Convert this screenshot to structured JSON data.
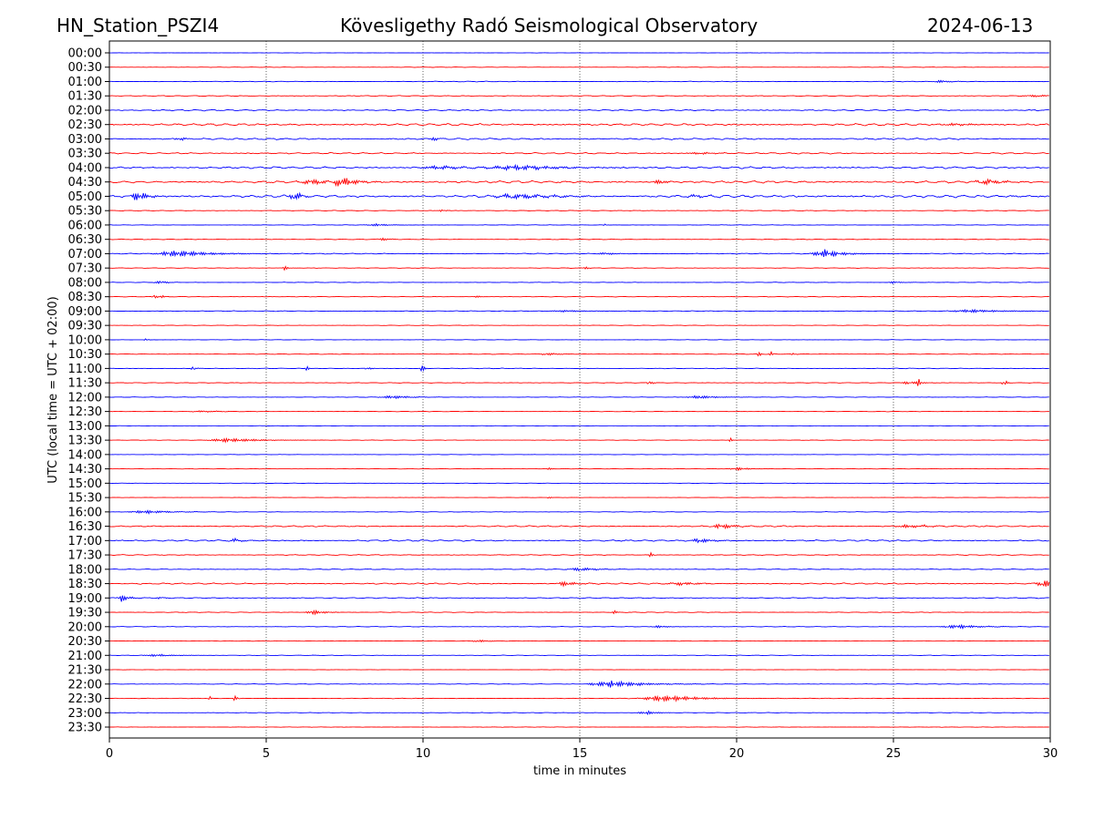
{
  "header": {
    "station": "HN_Station_PSZI4",
    "observatory": "Kövesligethy Radó Seismological Observatory",
    "date": "2024-06-13"
  },
  "chart_data": {
    "type": "line",
    "title": "Kövesligethy Radó Seismological Observatory",
    "xlabel": "time in minutes",
    "ylabel": "UTC (local time = UTC + 02:00)",
    "xlim": [
      0,
      30
    ],
    "xticks": [
      0,
      5,
      10,
      15,
      20,
      25,
      30
    ],
    "grid": "vertical dotted at 5-minute ticks",
    "colors": [
      "#0000ff",
      "#ff0000"
    ],
    "rows": [
      {
        "label": "00:00",
        "noise": 0.2,
        "events": []
      },
      {
        "label": "00:30",
        "noise": 0.25,
        "events": []
      },
      {
        "label": "01:00",
        "noise": 0.4,
        "events": [
          [
            26.5,
            1.5,
            0.3
          ]
        ]
      },
      {
        "label": "01:30",
        "noise": 0.5,
        "events": [
          [
            29.5,
            1.2,
            0.5
          ]
        ]
      },
      {
        "label": "02:00",
        "noise": 0.8,
        "events": []
      },
      {
        "label": "02:30",
        "noise": 1.2,
        "events": [
          [
            27,
            1.5,
            0.6
          ]
        ]
      },
      {
        "label": "03:00",
        "noise": 1.0,
        "events": [
          [
            2.2,
            3,
            0.15
          ],
          [
            10.3,
            3,
            0.15
          ]
        ]
      },
      {
        "label": "03:30",
        "noise": 0.8,
        "events": [
          [
            18.8,
            1.5,
            0.5
          ]
        ]
      },
      {
        "label": "04:00",
        "noise": 1.2,
        "events": [
          [
            13,
            3,
            1.2
          ],
          [
            10.5,
            2,
            0.8
          ]
        ]
      },
      {
        "label": "04:30",
        "noise": 1.3,
        "events": [
          [
            7.4,
            7,
            0.4
          ],
          [
            6.5,
            3,
            0.6
          ],
          [
            17.5,
            3,
            0.2
          ],
          [
            28,
            3,
            0.5
          ]
        ]
      },
      {
        "label": "05:00",
        "noise": 1.5,
        "events": [
          [
            0.9,
            6,
            0.3
          ],
          [
            5.9,
            6,
            0.2
          ],
          [
            13,
            3,
            1.0
          ],
          [
            18.7,
            2,
            0.3
          ]
        ]
      },
      {
        "label": "05:30",
        "noise": 0.4,
        "events": [
          [
            10.6,
            2,
            0.1
          ]
        ]
      },
      {
        "label": "06:00",
        "noise": 0.3,
        "events": [
          [
            8.5,
            1.5,
            0.4
          ],
          [
            15.8,
            2,
            0.05
          ]
        ]
      },
      {
        "label": "06:30",
        "noise": 0.4,
        "events": [
          [
            8.7,
            2,
            0.2
          ]
        ]
      },
      {
        "label": "07:00",
        "noise": 0.5,
        "events": [
          [
            2.2,
            4,
            0.9
          ],
          [
            22.8,
            5,
            0.5
          ],
          [
            15.8,
            1.5,
            0.3
          ]
        ]
      },
      {
        "label": "07:30",
        "noise": 0.3,
        "events": [
          [
            5.6,
            3,
            0.08
          ],
          [
            15.2,
            1.5,
            0.1
          ]
        ]
      },
      {
        "label": "08:00",
        "noise": 0.3,
        "events": [
          [
            1.6,
            2,
            0.2
          ],
          [
            25,
            1.2,
            0.3
          ]
        ]
      },
      {
        "label": "08:30",
        "noise": 0.3,
        "events": [
          [
            1.4,
            3,
            0.08
          ],
          [
            1.7,
            2,
            0.08
          ],
          [
            11.7,
            1.5,
            0.1
          ]
        ]
      },
      {
        "label": "09:00",
        "noise": 0.4,
        "events": [
          [
            14.5,
            1,
            0.8
          ],
          [
            27.5,
            2,
            0.8
          ]
        ]
      },
      {
        "label": "09:30",
        "noise": 0.25,
        "events": []
      },
      {
        "label": "10:00",
        "noise": 0.25,
        "events": [
          [
            1.15,
            5,
            0.04
          ]
        ]
      },
      {
        "label": "10:30",
        "noise": 0.35,
        "events": [
          [
            20.7,
            4,
            0.05
          ],
          [
            21.1,
            5,
            0.05
          ],
          [
            21.8,
            3,
            0.05
          ],
          [
            14,
            1.5,
            0.3
          ]
        ]
      },
      {
        "label": "11:00",
        "noise": 0.35,
        "events": [
          [
            9.95,
            10,
            0.05
          ],
          [
            2.65,
            5,
            0.06
          ],
          [
            6.3,
            3,
            0.06
          ],
          [
            8.2,
            2,
            0.1
          ]
        ]
      },
      {
        "label": "11:30",
        "noise": 0.35,
        "events": [
          [
            28.5,
            14,
            0.05
          ],
          [
            25.8,
            5,
            0.06
          ],
          [
            17.2,
            4,
            0.08
          ],
          [
            25.5,
            2,
            0.3
          ]
        ]
      },
      {
        "label": "12:00",
        "noise": 0.3,
        "events": [
          [
            9,
            2,
            0.5
          ],
          [
            18.8,
            2,
            0.5
          ]
        ]
      },
      {
        "label": "12:30",
        "noise": 0.3,
        "events": [
          [
            3,
            1,
            0.5
          ]
        ]
      },
      {
        "label": "13:00",
        "noise": 0.2,
        "events": []
      },
      {
        "label": "13:30",
        "noise": 0.25,
        "events": [
          [
            3.8,
            2.5,
            0.8
          ],
          [
            19.8,
            3,
            0.05
          ]
        ]
      },
      {
        "label": "14:00",
        "noise": 0.2,
        "events": []
      },
      {
        "label": "14:30",
        "noise": 0.25,
        "events": [
          [
            20,
            2,
            0.3
          ],
          [
            14,
            1.5,
            0.1
          ]
        ]
      },
      {
        "label": "15:00",
        "noise": 0.2,
        "events": []
      },
      {
        "label": "15:30",
        "noise": 0.2,
        "events": [
          [
            14,
            1.2,
            0.1
          ]
        ]
      },
      {
        "label": "16:00",
        "noise": 0.3,
        "events": [
          [
            1.2,
            2,
            0.7
          ]
        ]
      },
      {
        "label": "16:30",
        "noise": 0.8,
        "events": [
          [
            19.5,
            3,
            0.4
          ],
          [
            25.5,
            2,
            0.6
          ]
        ]
      },
      {
        "label": "17:00",
        "noise": 0.9,
        "events": [
          [
            18.8,
            3,
            0.3
          ],
          [
            4,
            2,
            0.3
          ]
        ]
      },
      {
        "label": "17:30",
        "noise": 0.5,
        "events": [
          [
            17.25,
            5,
            0.04
          ]
        ]
      },
      {
        "label": "18:00",
        "noise": 0.5,
        "events": [
          [
            15,
            2,
            0.5
          ]
        ]
      },
      {
        "label": "18:30",
        "noise": 0.8,
        "events": [
          [
            29.8,
            5,
            0.3
          ],
          [
            14.5,
            3,
            0.3
          ],
          [
            18.2,
            2,
            0.5
          ]
        ]
      },
      {
        "label": "19:00",
        "noise": 0.6,
        "events": [
          [
            0.4,
            5,
            0.2
          ],
          [
            1.6,
            2,
            0.1
          ]
        ]
      },
      {
        "label": "19:30",
        "noise": 0.4,
        "events": [
          [
            6.5,
            3,
            0.3
          ],
          [
            16.1,
            2,
            0.1
          ]
        ]
      },
      {
        "label": "20:00",
        "noise": 0.3,
        "events": [
          [
            27,
            2.5,
            0.6
          ],
          [
            17.5,
            1.5,
            0.3
          ]
        ]
      },
      {
        "label": "20:30",
        "noise": 0.3,
        "events": [
          [
            11.8,
            1.5,
            0.3
          ]
        ]
      },
      {
        "label": "21:00",
        "noise": 0.25,
        "events": [
          [
            1.5,
            1.5,
            0.5
          ]
        ]
      },
      {
        "label": "21:30",
        "noise": 0.2,
        "events": []
      },
      {
        "label": "22:00",
        "noise": 0.3,
        "events": [
          [
            16,
            4,
            0.9
          ]
        ]
      },
      {
        "label": "22:30",
        "noise": 0.35,
        "events": [
          [
            17.7,
            4,
            0.9
          ],
          [
            4,
            5,
            0.06
          ],
          [
            3.2,
            3,
            0.05
          ]
        ]
      },
      {
        "label": "23:00",
        "noise": 0.3,
        "events": [
          [
            17.1,
            2.5,
            0.3
          ]
        ]
      },
      {
        "label": "23:30",
        "noise": 0.25,
        "events": []
      }
    ]
  }
}
